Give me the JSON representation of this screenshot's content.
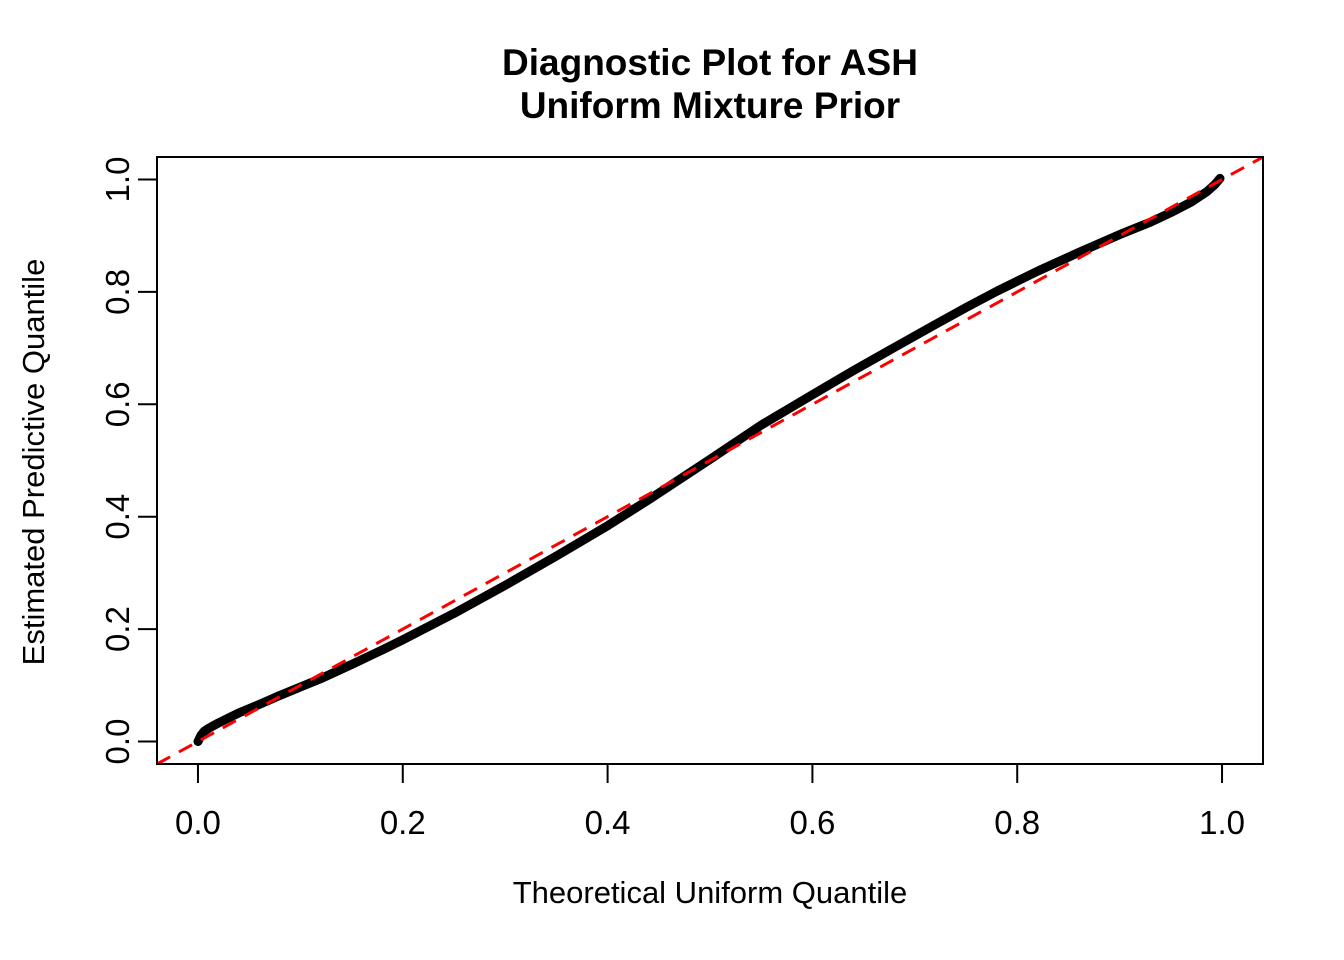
{
  "title": {
    "line1": "Diagnostic Plot for ASH",
    "line2": "Uniform Mixture Prior"
  },
  "axes": {
    "xlabel": "Theoretical Uniform Quantile",
    "ylabel": "Estimated Predictive Quantile",
    "x_tick_labels": [
      "0.0",
      "0.2",
      "0.4",
      "0.6",
      "0.8",
      "1.0"
    ],
    "y_tick_labels": [
      "0.0",
      "0.2",
      "0.4",
      "0.6",
      "0.8",
      "1.0"
    ]
  },
  "colors": {
    "background": "#FFFFFF",
    "axis": "#000000",
    "text": "#000000",
    "curve": "#000000",
    "reference_line": "#FF0000"
  },
  "chart_data": {
    "type": "line",
    "title": "Diagnostic Plot for ASH\nUniform Mixture Prior",
    "xlabel": "Theoretical Uniform Quantile",
    "ylabel": "Estimated Predictive Quantile",
    "xlim": [
      -0.04,
      1.04
    ],
    "ylim": [
      -0.04,
      1.04
    ],
    "x_ticks": [
      0.0,
      0.2,
      0.4,
      0.6,
      0.8,
      1.0
    ],
    "y_ticks": [
      0.0,
      0.2,
      0.4,
      0.6,
      0.8,
      1.0
    ],
    "grid": false,
    "legend": "none",
    "series": [
      {
        "name": "estimated-predictive-quantiles",
        "color": "#000000",
        "style": "solid-thick",
        "points": [
          [
            0.0,
            0.0
          ],
          [
            0.003,
            0.011
          ],
          [
            0.006,
            0.018
          ],
          [
            0.01,
            0.023
          ],
          [
            0.02,
            0.033
          ],
          [
            0.03,
            0.042
          ],
          [
            0.04,
            0.051
          ],
          [
            0.06,
            0.066
          ],
          [
            0.08,
            0.082
          ],
          [
            0.1,
            0.097
          ],
          [
            0.12,
            0.112
          ],
          [
            0.15,
            0.137
          ],
          [
            0.18,
            0.163
          ],
          [
            0.2,
            0.181
          ],
          [
            0.25,
            0.228
          ],
          [
            0.3,
            0.278
          ],
          [
            0.35,
            0.33
          ],
          [
            0.4,
            0.384
          ],
          [
            0.44,
            0.43
          ],
          [
            0.48,
            0.478
          ],
          [
            0.5,
            0.502
          ],
          [
            0.55,
            0.563
          ],
          [
            0.6,
            0.617
          ],
          [
            0.64,
            0.66
          ],
          [
            0.68,
            0.701
          ],
          [
            0.72,
            0.742
          ],
          [
            0.75,
            0.772
          ],
          [
            0.78,
            0.801
          ],
          [
            0.82,
            0.837
          ],
          [
            0.86,
            0.87
          ],
          [
            0.9,
            0.902
          ],
          [
            0.93,
            0.924
          ],
          [
            0.95,
            0.941
          ],
          [
            0.97,
            0.96
          ],
          [
            0.985,
            0.978
          ],
          [
            0.993,
            0.991
          ],
          [
            0.998,
            1.002
          ]
        ]
      },
      {
        "name": "reference-diagonal-y-equals-x",
        "color": "#FF0000",
        "style": "dashed",
        "points": [
          [
            -0.04,
            -0.04
          ],
          [
            1.04,
            1.04
          ]
        ]
      }
    ]
  }
}
